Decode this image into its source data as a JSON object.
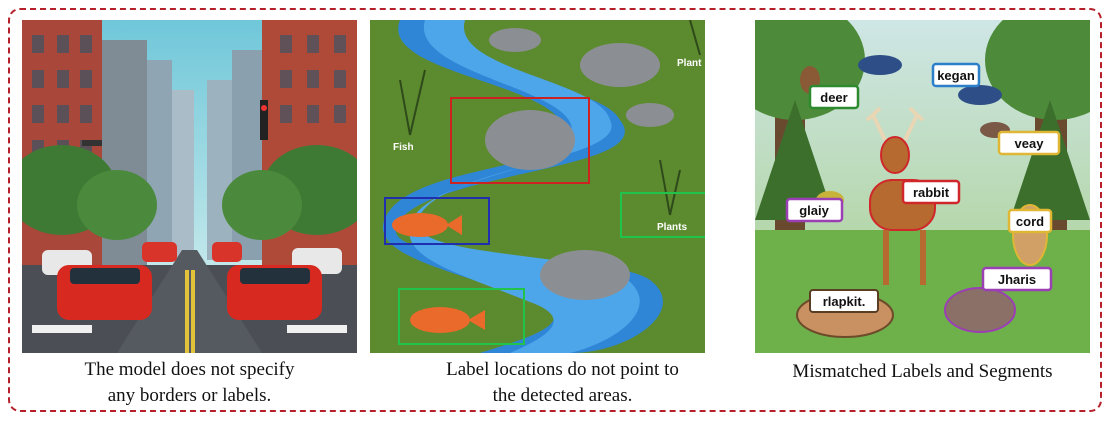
{
  "panels": [
    {
      "caption_line1": "The model does not specify",
      "caption_line2": "any borders or labels."
    },
    {
      "caption_line1": "Label locations do not point to",
      "caption_line2": "the detected areas.",
      "labels": {
        "plant": "Plant",
        "fish": "Fish",
        "plants": "Plants"
      },
      "box_colors": {
        "rock": "#cc2222",
        "fish_blue": "#1f2fb0",
        "plants_green": "#22c34a",
        "fish_green": "#22c34a"
      }
    },
    {
      "caption_line1": "Mismatched Labels and Segments",
      "labels": {
        "kegan": "kegan",
        "deer": "deer",
        "veay": "veay",
        "rabbit": "rabbit",
        "glaiy": "glaiy",
        "cord": "cord",
        "jharis": "Jharis",
        "rlapkit": "rlapkit."
      }
    }
  ],
  "frame_color": "#b5202a"
}
